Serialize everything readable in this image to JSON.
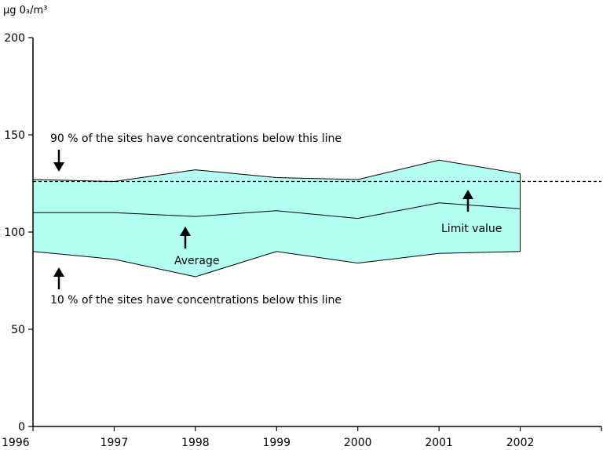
{
  "chart_data": {
    "type": "area",
    "ylabel": "µg 0₃/m³",
    "ylim": [
      0,
      200
    ],
    "yticks": [
      0,
      50,
      100,
      150,
      200
    ],
    "xlim": [
      1996,
      2003
    ],
    "x": [
      1996,
      1997,
      1998,
      1999,
      2000,
      2001,
      2002
    ],
    "xtick_labels": [
      "1996",
      "1997",
      "1998",
      "1999",
      "2000",
      "2001",
      "2002"
    ],
    "series": [
      {
        "name": "90 % of the sites have concentrations below this line",
        "values": [
          127,
          126,
          132,
          128,
          127,
          137,
          130
        ]
      },
      {
        "name": "Average",
        "values": [
          110,
          110,
          108,
          111,
          107,
          115,
          112
        ]
      },
      {
        "name": "10 % of the sites have concentrations below this line",
        "values": [
          90,
          86,
          77,
          90,
          84,
          89,
          90
        ]
      }
    ],
    "limit_value": {
      "name": "Limit value",
      "value": 126
    },
    "annotations": {
      "p90": "90 % of the sites have concentrations below this line",
      "p10": "10 % of the sites have concentrations below this line",
      "average": "Average",
      "limit": "Limit value"
    },
    "band_color": "#b3fff0",
    "grid": false
  }
}
